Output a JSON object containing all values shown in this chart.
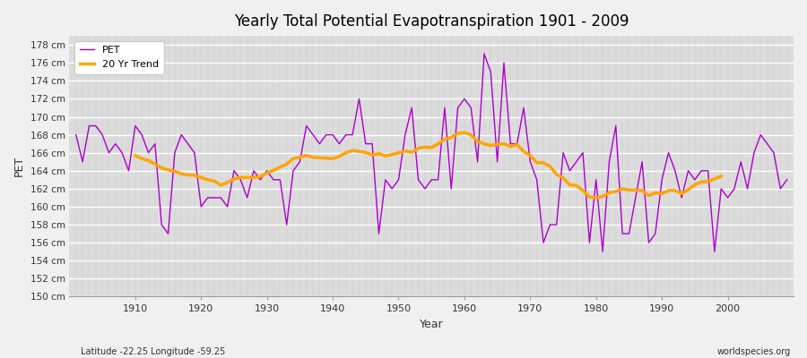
{
  "title": "Yearly Total Potential Evapotranspiration 1901 - 2009",
  "xlabel": "Year",
  "ylabel": "PET",
  "subtitle_left": "Latitude -22.25 Longitude -59.25",
  "subtitle_right": "worldspecies.org",
  "pet_color": "#AA00CC",
  "trend_color": "#FFA500",
  "bg_color": "#F0F0F0",
  "plot_bg_color": "#DCDCDC",
  "grid_color_h": "#FFFFFF",
  "grid_color_v": "#C8C8C8",
  "ylim": [
    150,
    179
  ],
  "ytick_step": 2,
  "years": [
    1901,
    1902,
    1903,
    1904,
    1905,
    1906,
    1907,
    1908,
    1909,
    1910,
    1911,
    1912,
    1913,
    1914,
    1915,
    1916,
    1917,
    1918,
    1919,
    1920,
    1921,
    1922,
    1923,
    1924,
    1925,
    1926,
    1927,
    1928,
    1929,
    1930,
    1931,
    1932,
    1933,
    1934,
    1935,
    1936,
    1937,
    1938,
    1939,
    1940,
    1941,
    1942,
    1943,
    1944,
    1945,
    1946,
    1947,
    1948,
    1949,
    1950,
    1951,
    1952,
    1953,
    1954,
    1955,
    1956,
    1957,
    1958,
    1959,
    1960,
    1961,
    1962,
    1963,
    1964,
    1965,
    1966,
    1967,
    1968,
    1969,
    1970,
    1971,
    1972,
    1973,
    1974,
    1975,
    1976,
    1977,
    1978,
    1979,
    1980,
    1981,
    1982,
    1983,
    1984,
    1985,
    1986,
    1987,
    1988,
    1989,
    1990,
    1991,
    1992,
    1993,
    1994,
    1995,
    1996,
    1997,
    1998,
    1999,
    2000,
    2001,
    2002,
    2003,
    2004,
    2005,
    2006,
    2007,
    2008,
    2009
  ],
  "pet_values": [
    168,
    165,
    169,
    169,
    168,
    166,
    167,
    166,
    164,
    169,
    168,
    166,
    167,
    158,
    157,
    166,
    168,
    167,
    166,
    160,
    161,
    161,
    161,
    160,
    164,
    163,
    161,
    164,
    163,
    164,
    163,
    163,
    158,
    164,
    165,
    169,
    168,
    167,
    168,
    168,
    167,
    168,
    168,
    172,
    167,
    167,
    157,
    163,
    162,
    163,
    168,
    171,
    163,
    162,
    163,
    163,
    171,
    162,
    171,
    172,
    171,
    165,
    177,
    175,
    165,
    176,
    167,
    167,
    171,
    165,
    163,
    156,
    158,
    158,
    166,
    164,
    165,
    166,
    156,
    163,
    155,
    165,
    169,
    157,
    157,
    161,
    165,
    156,
    157,
    163,
    166,
    164,
    161,
    164,
    163,
    164,
    164,
    155,
    162,
    161,
    162,
    165,
    162,
    166,
    168,
    167,
    166,
    162,
    163
  ],
  "legend_pet": "PET",
  "legend_trend": "20 Yr Trend",
  "trend_window": 20
}
